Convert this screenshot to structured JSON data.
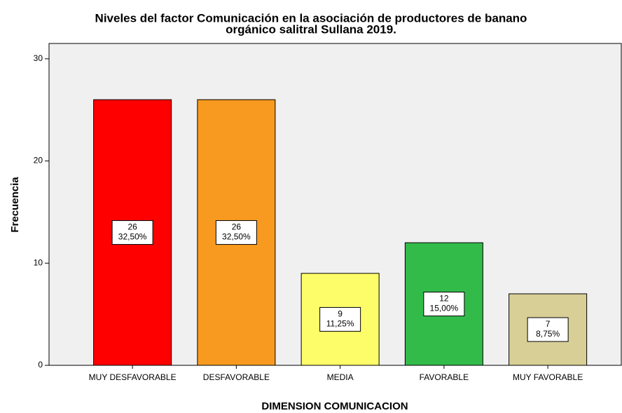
{
  "chart_data": {
    "type": "bar",
    "title": [
      "Niveles del factor Comunicación en la asociación de productores de banano",
      "orgánico salitral Sullana 2019."
    ],
    "x_label": "DIMENSION COMUNICACION",
    "y_label": "Frecuencia",
    "categories": [
      "MUY DESFAVORABLE",
      "DESFAVORABLE",
      "MEDIA",
      "FAVORABLE",
      "MUY FAVORABLE"
    ],
    "values": [
      26,
      26,
      9,
      12,
      7
    ],
    "percents": [
      32.5,
      32.5,
      11.25,
      15,
      8.75
    ],
    "percent_labels": [
      "32,50%",
      "32,50%",
      "11,25%",
      "15,00%",
      "8,75%"
    ],
    "colors": [
      "#ff0000",
      "#f89a1f",
      "#fdfd6a",
      "#33bb4a",
      "#d8cf97"
    ],
    "ylim": [
      0,
      31.5
    ],
    "yticks": [
      0,
      10,
      20,
      30
    ]
  }
}
